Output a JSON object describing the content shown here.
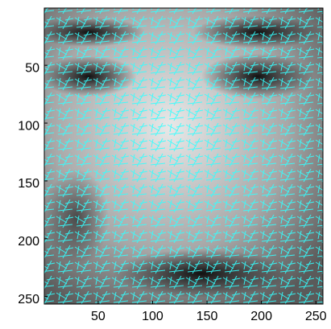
{
  "chart_data": {
    "type": "image",
    "xlim": [
      0.5,
      256.5
    ],
    "ylim": [
      0.5,
      256.5
    ],
    "y_reversed": true,
    "xticks": [
      50,
      100,
      150,
      200,
      250
    ],
    "yticks": [
      50,
      100,
      150,
      200,
      250
    ]
  }
}
